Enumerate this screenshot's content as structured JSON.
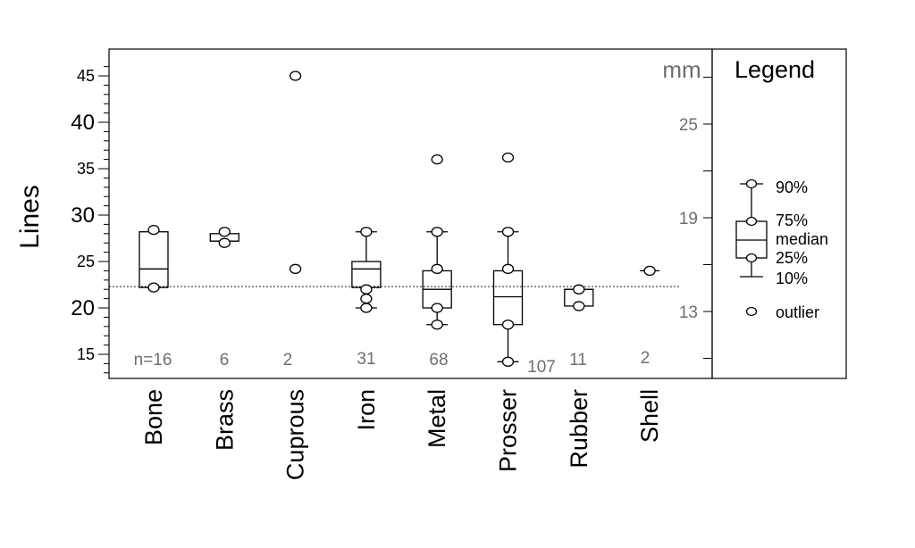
{
  "chart_data": {
    "type": "box",
    "ylabel": "Lines",
    "right_axis_label": "mm",
    "ylim": [
      12,
      47
    ],
    "left_ticks": [
      15,
      20,
      25,
      30,
      35,
      40,
      45
    ],
    "right_ticks": [
      13,
      19,
      25
    ],
    "reference_line": 22.3,
    "categories": [
      "Bone",
      "Brass",
      "Cuprous",
      "Iron",
      "Metal",
      "Prosser",
      "Rubber",
      "Shell"
    ],
    "counts": [
      "n=16",
      "6",
      "2",
      "31",
      "68",
      "107",
      "11",
      "2"
    ],
    "boxes": [
      {
        "name": "Bone",
        "q1": 22.2,
        "median": 24.2,
        "q3": 28.2,
        "p10": null,
        "p90": null,
        "points": [
          22.2,
          28.4
        ]
      },
      {
        "name": "Brass",
        "q1": 27.2,
        "median": 27.2,
        "q3": 28.0,
        "p10": null,
        "p90": null,
        "points": [
          27.0,
          28.2
        ]
      },
      {
        "name": "Cuprous",
        "q1": null,
        "median": null,
        "q3": null,
        "p10": null,
        "p90": null,
        "points": [
          24.2,
          45.0
        ]
      },
      {
        "name": "Iron",
        "q1": 22.2,
        "median": 24.2,
        "q3": 25.0,
        "p10": 20.0,
        "p90": 28.2,
        "points": [
          20.0,
          21.0,
          22.0,
          28.2
        ]
      },
      {
        "name": "Metal",
        "q1": 20.0,
        "median": 22.0,
        "q3": 24.0,
        "p10": 18.2,
        "p90": 28.2,
        "points": [
          18.2,
          20.0,
          24.2,
          28.2,
          36.0
        ]
      },
      {
        "name": "Prosser",
        "q1": 18.2,
        "median": 21.2,
        "q3": 24.0,
        "p10": 14.2,
        "p90": 28.2,
        "points": [
          14.2,
          18.2,
          24.2,
          28.2,
          36.2
        ]
      },
      {
        "name": "Rubber",
        "q1": 20.2,
        "median": 22.0,
        "q3": 22.0,
        "p10": null,
        "p90": null,
        "points": [
          20.2,
          22.0
        ]
      },
      {
        "name": "Shell",
        "q1": 24.0,
        "median": 24.0,
        "q3": 24.0,
        "p10": null,
        "p90": null,
        "points": [
          24.0
        ]
      }
    ]
  },
  "legend": {
    "title": "Legend",
    "labels": {
      "p90": "90%",
      "q3": "75%",
      "median": "median",
      "q1": "25%",
      "p10": "10%",
      "outlier": "outlier"
    }
  }
}
